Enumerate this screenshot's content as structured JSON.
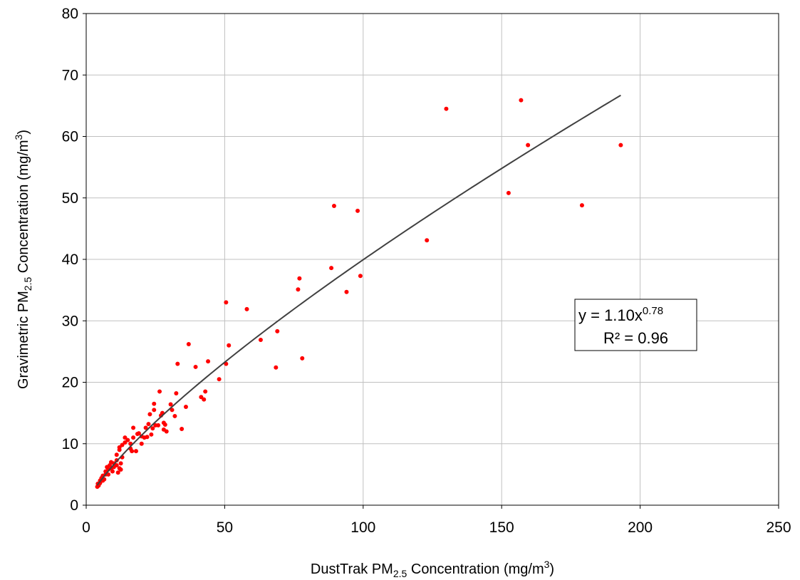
{
  "chart_data": {
    "type": "scatter",
    "xlabel": {
      "main": "DustTrak PM",
      "sub": "2.5",
      "rest": " Concentration (mg/m",
      "sup": "3",
      "end": ")"
    },
    "ylabel": {
      "main": "Gravimetric PM",
      "sub": "2.5",
      "rest": " Concentration (mg/m",
      "sup": "3",
      "end": ")"
    },
    "xlim": [
      0,
      250
    ],
    "ylim": [
      0,
      80
    ],
    "xticks": [
      0,
      50,
      100,
      150,
      200,
      250
    ],
    "yticks": [
      0,
      10,
      20,
      30,
      40,
      50,
      60,
      70,
      80
    ],
    "grid": true,
    "point_color": "#ff0000",
    "trend_color": "#404040",
    "trendline": {
      "type": "power",
      "a": 1.1,
      "b": 0.78,
      "x_range": [
        4,
        193
      ],
      "equation_text": "y = 1.10x",
      "exponent_text": "0.78",
      "r2_text": "R² = 0.96"
    },
    "points": [
      [
        4,
        3.0
      ],
      [
        4.2,
        3.5
      ],
      [
        4.5,
        3.2
      ],
      [
        5,
        4.0
      ],
      [
        5,
        3.6
      ],
      [
        5.5,
        4.4
      ],
      [
        6,
        4.0
      ],
      [
        6,
        4.8
      ],
      [
        6.5,
        4.2
      ],
      [
        7,
        5.0
      ],
      [
        7,
        5.5
      ],
      [
        7.5,
        6.2
      ],
      [
        8,
        5.0
      ],
      [
        8,
        5.8
      ],
      [
        8.5,
        6.5
      ],
      [
        9,
        6.0
      ],
      [
        9,
        7.0
      ],
      [
        9.5,
        5.5
      ],
      [
        10,
        6.8
      ],
      [
        10,
        6.2
      ],
      [
        11,
        7.3
      ],
      [
        11,
        6.5
      ],
      [
        11,
        8.2
      ],
      [
        11.5,
        5.3
      ],
      [
        12,
        6.0
      ],
      [
        12,
        9.4
      ],
      [
        12,
        9.0
      ],
      [
        12.5,
        6.8
      ],
      [
        12.5,
        5.8
      ],
      [
        13,
        7.8
      ],
      [
        13,
        9.8
      ],
      [
        14,
        10.2
      ],
      [
        14,
        11.0
      ],
      [
        15,
        10.6
      ],
      [
        16,
        9.2
      ],
      [
        16,
        10.0
      ],
      [
        16.5,
        8.8
      ],
      [
        17,
        11.0
      ],
      [
        17,
        12.6
      ],
      [
        18,
        8.8
      ],
      [
        18.5,
        11.6
      ],
      [
        19,
        11.7
      ],
      [
        20,
        10.0
      ],
      [
        20,
        11.2
      ],
      [
        21,
        11.0
      ],
      [
        21.5,
        12.6
      ],
      [
        22,
        11.1
      ],
      [
        22.5,
        13.2
      ],
      [
        23,
        14.8
      ],
      [
        23.5,
        11.5
      ],
      [
        24,
        12.5
      ],
      [
        24.5,
        15.5
      ],
      [
        24.5,
        16.5
      ],
      [
        25,
        13.0
      ],
      [
        26,
        13.0
      ],
      [
        27,
        14.6
      ],
      [
        26.5,
        18.5
      ],
      [
        27.5,
        15.0
      ],
      [
        28,
        13.4
      ],
      [
        28,
        12.3
      ],
      [
        28.5,
        13.1
      ],
      [
        29,
        12.0
      ],
      [
        30.5,
        16.4
      ],
      [
        31,
        15.5
      ],
      [
        32,
        14.5
      ],
      [
        32.5,
        18.2
      ],
      [
        33,
        23.0
      ],
      [
        34.5,
        12.4
      ],
      [
        36,
        16.0
      ],
      [
        37,
        26.2
      ],
      [
        39.5,
        22.5
      ],
      [
        41.5,
        17.6
      ],
      [
        42.5,
        17.2
      ],
      [
        43,
        18.5
      ],
      [
        44,
        23.4
      ],
      [
        48,
        20.5
      ],
      [
        50.5,
        23.0
      ],
      [
        50.5,
        33.0
      ],
      [
        51.5,
        26.0
      ],
      [
        58,
        31.9
      ],
      [
        63,
        26.9
      ],
      [
        68.5,
        22.4
      ],
      [
        69,
        28.3
      ],
      [
        76.5,
        35.1
      ],
      [
        77,
        36.9
      ],
      [
        78,
        23.9
      ],
      [
        88.5,
        38.6
      ],
      [
        89.5,
        48.7
      ],
      [
        94,
        34.7
      ],
      [
        98,
        47.9
      ],
      [
        99,
        37.3
      ],
      [
        123,
        43.1
      ],
      [
        130,
        64.5
      ],
      [
        152.5,
        50.8
      ],
      [
        157,
        65.9
      ],
      [
        159.5,
        58.6
      ],
      [
        179,
        48.8
      ],
      [
        193,
        58.6
      ]
    ]
  }
}
